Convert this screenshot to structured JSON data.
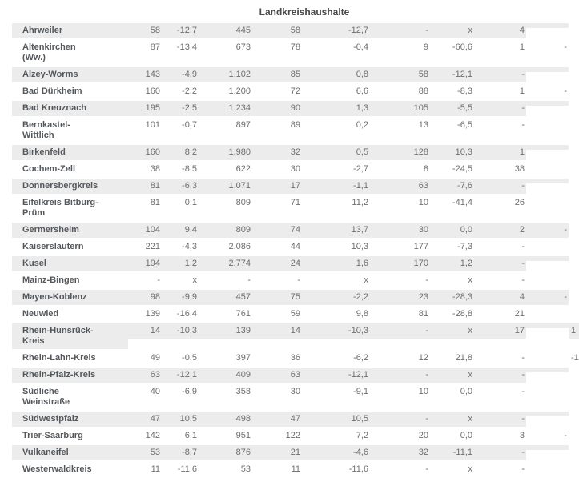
{
  "title": "Landkreishaushalte",
  "colors": {
    "stripe_row_background": "#ececec",
    "plain_row_background": "#ffffff",
    "district_name_text": "#54585c",
    "number_text": "#6e6e6e",
    "title_text": "#474747"
  },
  "table": {
    "rows": [
      {
        "name": "Ahrweiler",
        "name_lines": [
          "Ahrweiler",
          ""
        ],
        "values": [
          "58",
          "-12,7",
          "445",
          "58",
          "-12,7",
          "-",
          "x",
          "4",
          "",
          ""
        ]
      },
      {
        "name": "Altenkirchen (Ww.)",
        "name_lines": [
          "Altenkirchen",
          "(Ww.)"
        ],
        "values": [
          "87",
          "-13,4",
          "673",
          "78",
          "-0,4",
          "9",
          "-60,6",
          "1",
          "-",
          ""
        ]
      },
      {
        "name": "Alzey-Worms",
        "name_lines": [
          "Alzey-Worms",
          ""
        ],
        "values": [
          "143",
          "-4,9",
          "1.102",
          "85",
          "0,8",
          "58",
          "-12,1",
          "-",
          "",
          ""
        ]
      },
      {
        "name": "Bad Dürkheim",
        "name_lines": [
          "Bad Dürkheim",
          ""
        ],
        "values": [
          "160",
          "-2,2",
          "1.200",
          "72",
          "6,6",
          "88",
          "-8,3",
          "1",
          "-",
          ""
        ]
      },
      {
        "name": "Bad Kreuznach",
        "name_lines": [
          "Bad Kreuznach",
          ""
        ],
        "values": [
          "195",
          "-2,5",
          "1.234",
          "90",
          "1,3",
          "105",
          "-5,5",
          "-",
          "",
          ""
        ]
      },
      {
        "name": "Bernkastel-Wittlich",
        "name_lines": [
          "Bernkastel-",
          "Wittlich"
        ],
        "values": [
          "101",
          "-0,7",
          "897",
          "89",
          "0,2",
          "13",
          "-6,5",
          "-",
          "",
          ""
        ]
      },
      {
        "name": "Birkenfeld",
        "name_lines": [
          "Birkenfeld",
          ""
        ],
        "values": [
          "160",
          "8,2",
          "1.980",
          "32",
          "0,5",
          "128",
          "10,3",
          "1",
          "",
          ""
        ]
      },
      {
        "name": "Cochem-Zell",
        "name_lines": [
          "Cochem-Zell",
          ""
        ],
        "values": [
          "38",
          "-8,5",
          "622",
          "30",
          "-2,7",
          "8",
          "-24,5",
          "38",
          "",
          ""
        ]
      },
      {
        "name": "Donnersbergkreis",
        "name_lines": [
          "Donnersbergkreis",
          ""
        ],
        "values": [
          "81",
          "-6,3",
          "1.071",
          "17",
          "-1,1",
          "63",
          "-7,6",
          "-",
          "",
          ""
        ]
      },
      {
        "name": "Eifelkreis Bitburg-Prüm",
        "name_lines": [
          "Eifelkreis Bitburg-",
          "Prüm"
        ],
        "values": [
          "81",
          "0,1",
          "809",
          "71",
          "11,2",
          "10",
          "-41,4",
          "26",
          "",
          ""
        ]
      },
      {
        "name": "Germersheim",
        "name_lines": [
          "Germersheim",
          ""
        ],
        "values": [
          "104",
          "9,4",
          "809",
          "74",
          "13,7",
          "30",
          "0,0",
          "2",
          "-",
          ""
        ]
      },
      {
        "name": "Kaiserslautern",
        "name_lines": [
          "Kaiserslautern",
          ""
        ],
        "values": [
          "221",
          "-4,3",
          "2.086",
          "44",
          "10,3",
          "177",
          "-7,3",
          "-",
          "",
          ""
        ]
      },
      {
        "name": "Kusel",
        "name_lines": [
          "Kusel",
          ""
        ],
        "values": [
          "194",
          "1,2",
          "2.774",
          "24",
          "1,6",
          "170",
          "1,2",
          "-",
          "",
          ""
        ]
      },
      {
        "name": "Mainz-Bingen",
        "name_lines": [
          "Mainz-Bingen",
          ""
        ],
        "values": [
          "-",
          "x",
          "-",
          "-",
          "x",
          "-",
          "x",
          "-",
          "",
          ""
        ]
      },
      {
        "name": "Mayen-Koblenz",
        "name_lines": [
          "Mayen-Koblenz",
          ""
        ],
        "values": [
          "98",
          "-9,9",
          "457",
          "75",
          "-2,2",
          "23",
          "-28,3",
          "4",
          "-",
          ""
        ]
      },
      {
        "name": "Neuwied",
        "name_lines": [
          "Neuwied",
          ""
        ],
        "values": [
          "139",
          "-16,4",
          "761",
          "59",
          "9,8",
          "81",
          "-28,8",
          "21",
          "",
          ""
        ]
      },
      {
        "name": "Rhein-Hunsrück-Kreis",
        "name_lines": [
          "Rhein-Hunsrück-",
          "Kreis"
        ],
        "values": [
          "14",
          "-10,3",
          "139",
          "14",
          "-10,3",
          "-",
          "x",
          "17",
          "",
          "1"
        ]
      },
      {
        "name": "Rhein-Lahn-Kreis",
        "name_lines": [
          "Rhein-Lahn-Kreis",
          ""
        ],
        "values": [
          "49",
          "-0,5",
          "397",
          "36",
          "-6,2",
          "12",
          "21,8",
          "-",
          "",
          "-1"
        ]
      },
      {
        "name": "Rhein-Pfalz-Kreis",
        "name_lines": [
          "Rhein-Pfalz-Kreis",
          ""
        ],
        "values": [
          "63",
          "-12,1",
          "409",
          "63",
          "-12,1",
          "-",
          "x",
          "-",
          "",
          ""
        ]
      },
      {
        "name": "Südliche Weinstraße",
        "name_lines": [
          "Südliche",
          "Weinstraße"
        ],
        "values": [
          "40",
          "-6,9",
          "358",
          "30",
          "-9,1",
          "10",
          "0,0",
          "-",
          "",
          ""
        ]
      },
      {
        "name": "Südwestpfalz",
        "name_lines": [
          "Südwestpfalz",
          ""
        ],
        "values": [
          "47",
          "10,5",
          "498",
          "47",
          "10,5",
          "-",
          "x",
          "-",
          "",
          ""
        ]
      },
      {
        "name": "Trier-Saarburg",
        "name_lines": [
          "Trier-Saarburg",
          ""
        ],
        "values": [
          "142",
          "6,1",
          "951",
          "122",
          "7,2",
          "20",
          "0,0",
          "3",
          "-",
          ""
        ]
      },
      {
        "name": "Vulkaneifel",
        "name_lines": [
          "Vulkaneifel",
          ""
        ],
        "values": [
          "53",
          "-8,7",
          "876",
          "21",
          "-4,6",
          "32",
          "-11,1",
          "-",
          "",
          ""
        ]
      },
      {
        "name": "Westerwaldkreis",
        "name_lines": [
          "Westerwaldkreis",
          ""
        ],
        "values": [
          "11",
          "-11,6",
          "53",
          "11",
          "-11,6",
          "-",
          "x",
          "-",
          "",
          ""
        ]
      }
    ]
  }
}
